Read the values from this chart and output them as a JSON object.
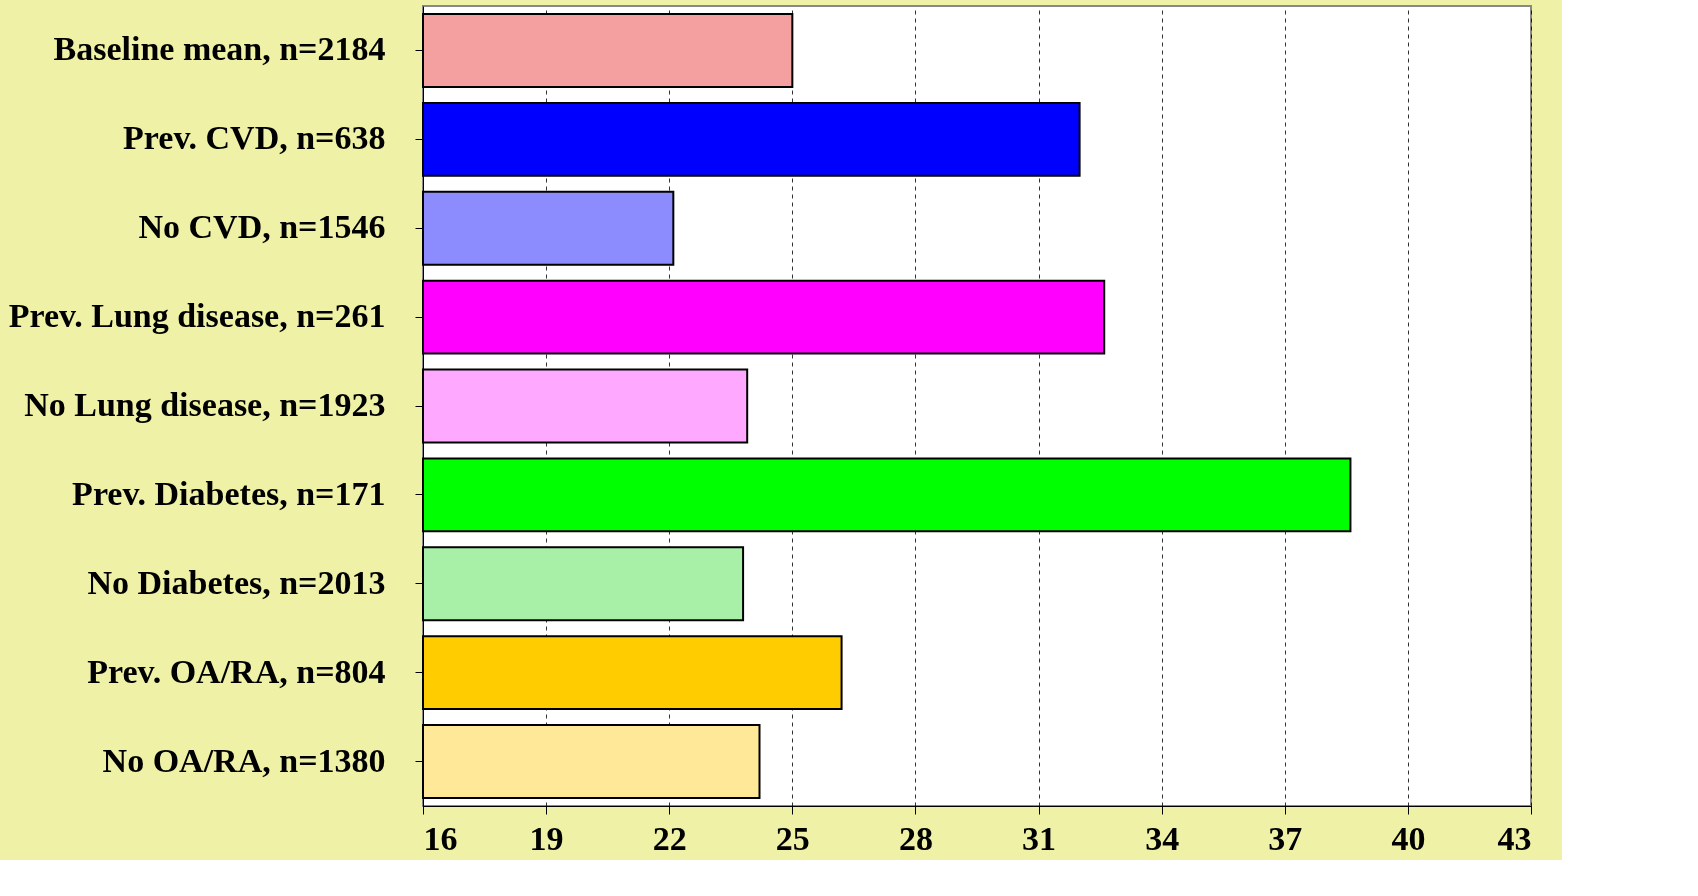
{
  "chart_data": {
    "type": "bar",
    "orientation": "horizontal",
    "categories": [
      "Baseline mean, n=2184",
      "Prev. CVD, n=638",
      "No CVD, n=1546",
      "Prev. Lung disease, n=261",
      "No Lung disease, n=1923",
      "Prev. Diabetes, n=171",
      "No Diabetes, n=2013",
      "Prev. OA/RA, n=804",
      "No OA/RA, n=1380"
    ],
    "values": [
      25.0,
      32.0,
      22.1,
      32.6,
      23.9,
      38.6,
      23.8,
      26.2,
      24.2
    ],
    "colors": [
      "#f4a0a0",
      "#0000ff",
      "#8c8cff",
      "#ff00ff",
      "#ffa8ff",
      "#00ff00",
      "#a8f0a8",
      "#ffcc00",
      "#ffe898"
    ],
    "xlim": [
      16,
      43
    ],
    "xticks": [
      16,
      19,
      22,
      25,
      28,
      31,
      34,
      37,
      40,
      43
    ],
    "grid": "x",
    "legend": false
  }
}
